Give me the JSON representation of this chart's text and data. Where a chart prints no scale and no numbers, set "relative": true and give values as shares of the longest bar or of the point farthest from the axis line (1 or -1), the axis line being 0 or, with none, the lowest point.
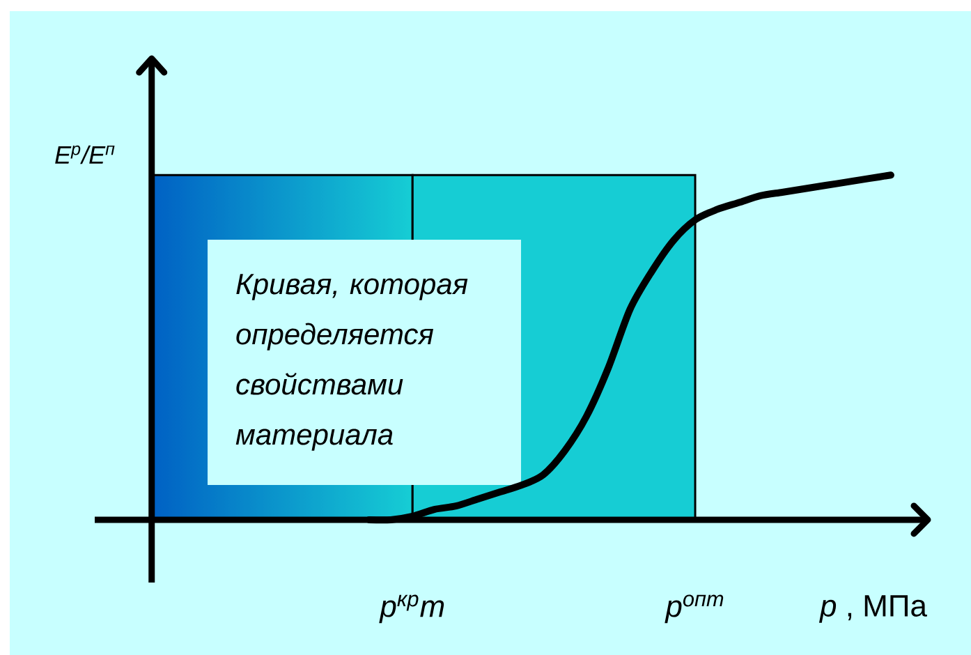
{
  "chart_data": {
    "type": "line",
    "relative": true,
    "xlabel": "*p* , МПа",
    "ylabel": "E$^{р}$/E$^{п}$",
    "categories": [
      null,
      null,
      null,
      null,
      null,
      null,
      null,
      null,
      null,
      null,
      null,
      null,
      "p$^{кр}$т",
      null,
      null,
      null,
      null,
      null,
      null,
      null,
      null,
      null,
      null,
      null,
      null,
      "p$^{опт}$",
      null,
      null,
      null,
      null,
      null,
      null,
      null,
      null,
      null
    ],
    "series": [
      {
        "color": "#000000",
        "values": [
          null,
          null,
          null,
          null,
          null,
          null,
          null,
          null,
          null,
          null,
          0,
          0,
          0.01,
          0.03,
          0.04,
          0.06,
          0.08,
          0.1,
          0.13,
          0.2,
          0.3,
          0.44,
          0.61,
          0.72,
          0.81,
          0.87,
          0.9,
          0.92,
          0.94,
          0.95,
          0.96,
          0.97,
          0.98,
          0.99,
          1
        ]
      }
    ],
    "bands": [
      {
        "axis": "x",
        "from": "p$^{кр}$т",
        "to": "p$^{опт}$",
        "color": "#16cdd4"
      }
    ],
    "annotations": [
      "Кривая, которая определяется свойствами материала"
    ]
  }
}
